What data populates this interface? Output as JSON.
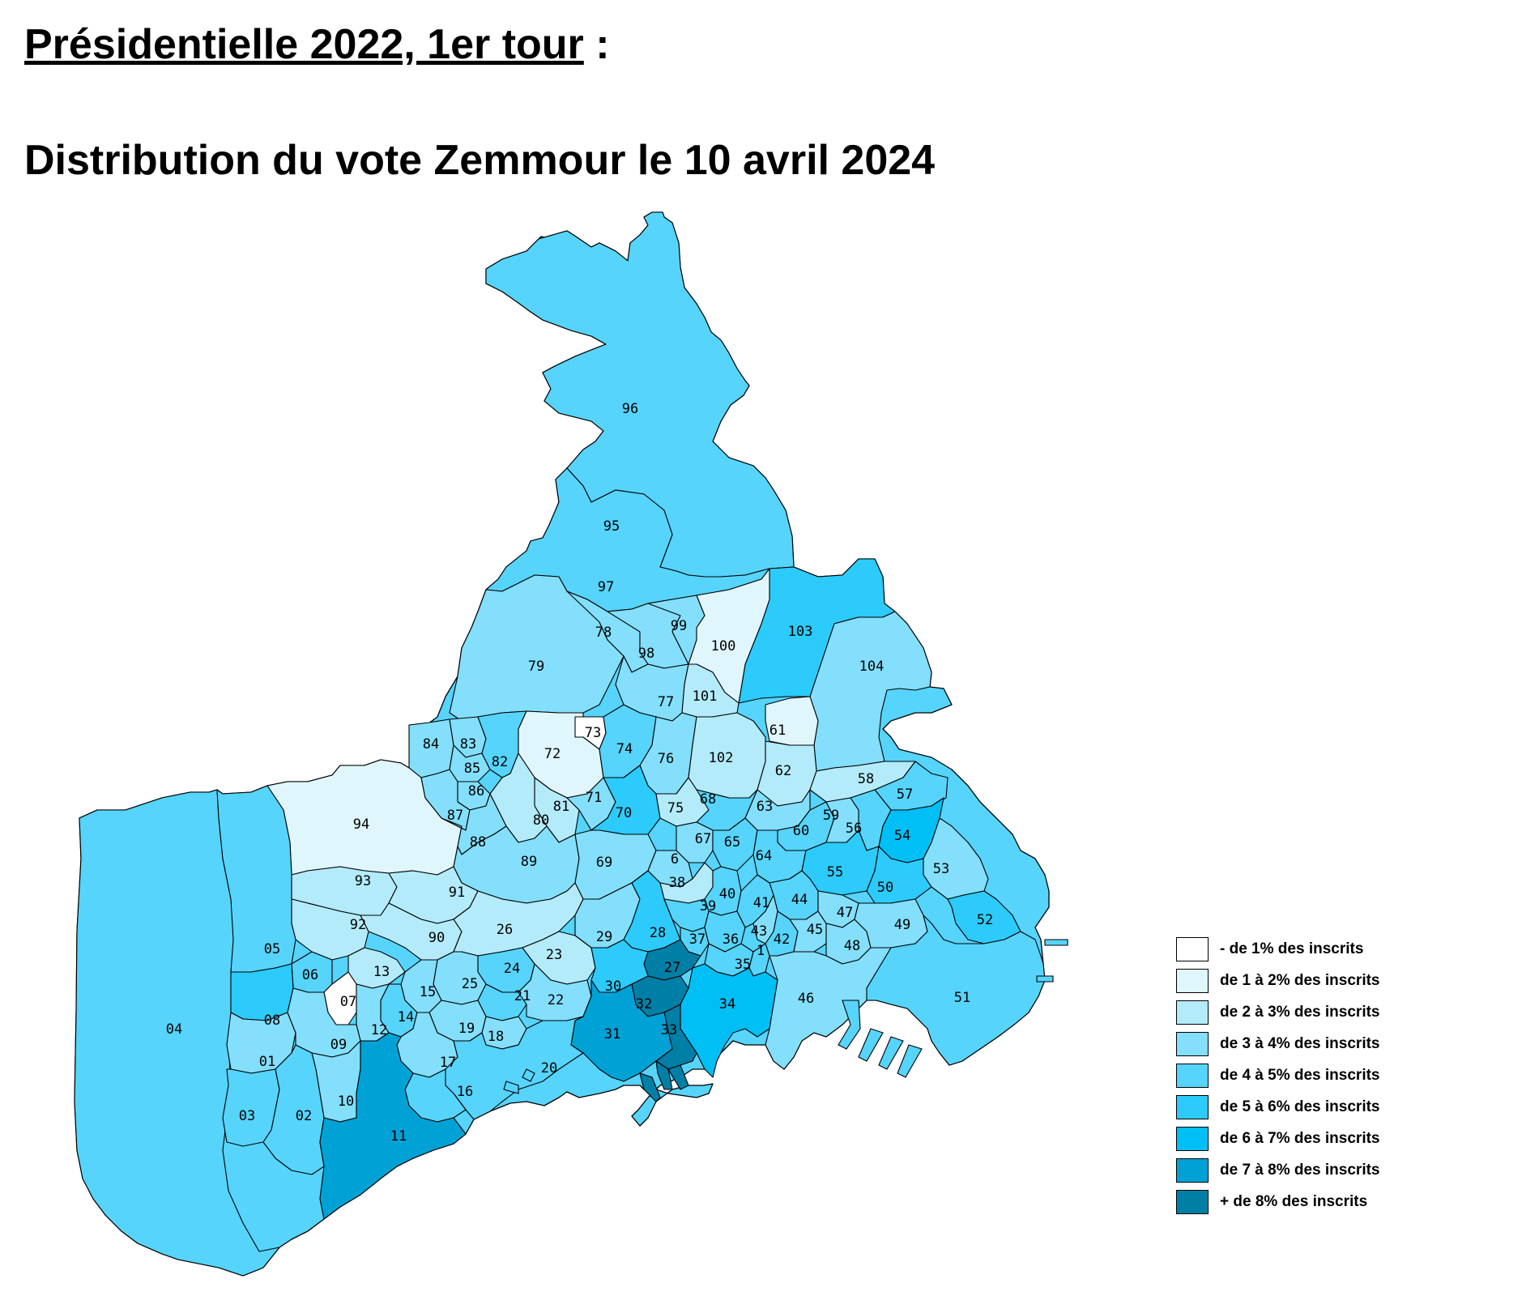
{
  "title": {
    "line1_underlined": "Présidentielle 2022, 1er tour",
    "line1_suffix": " :",
    "line2": "Distribution du vote Zemmour le 10 avril 2024"
  },
  "legend": [
    {
      "label": "- de 1% des inscrits",
      "color": "#ffffff"
    },
    {
      "label": "de 1 à 2% des inscrits",
      "color": "#e0f6fd"
    },
    {
      "label": "de 2 à 3% des inscrits",
      "color": "#b3ebfb"
    },
    {
      "label": "de 3 à 4% des inscrits",
      "color": "#83dffb"
    },
    {
      "label": "de 4 à 5% des inscrits",
      "color": "#56d4fb"
    },
    {
      "label": "de 5 à 6% des inscrits",
      "color": "#2ccbfb"
    },
    {
      "label": "de 6 à 7% des inscrits",
      "color": "#00bff5"
    },
    {
      "label": "de 7 à 8% des inscrits",
      "color": "#00a2d6"
    },
    {
      "label": "+ de 8% des inscrits",
      "color": "#007fa6"
    }
  ],
  "map": {
    "sectors": [
      {
        "label": "96",
        "class": 4
      },
      {
        "label": "95",
        "class": 3
      },
      {
        "label": "97",
        "class": 4
      },
      {
        "label": "103",
        "class": 5
      },
      {
        "label": "104",
        "class": 3
      },
      {
        "label": "79",
        "class": 3
      },
      {
        "label": "78",
        "class": 3
      },
      {
        "label": "98",
        "class": 3
      },
      {
        "label": "99",
        "class": 3
      },
      {
        "label": "100",
        "class": 1
      },
      {
        "label": "77",
        "class": 3
      },
      {
        "label": "101",
        "class": 2
      },
      {
        "label": "84",
        "class": 3
      },
      {
        "label": "83",
        "class": 3
      },
      {
        "label": "85",
        "class": 3
      },
      {
        "label": "82",
        "class": 4
      },
      {
        "label": "72",
        "class": 1
      },
      {
        "label": "73",
        "class": 0
      },
      {
        "label": "74",
        "class": 4
      },
      {
        "label": "76",
        "class": 3
      },
      {
        "label": "102",
        "class": 2
      },
      {
        "label": "61",
        "class": 1
      },
      {
        "label": "62",
        "class": 2
      },
      {
        "label": "58",
        "class": 2
      },
      {
        "label": "94",
        "class": 1
      },
      {
        "label": "86",
        "class": 3
      },
      {
        "label": "87",
        "class": 3
      },
      {
        "label": "81",
        "class": 2
      },
      {
        "label": "71",
        "class": 3
      },
      {
        "label": "70",
        "class": 5
      },
      {
        "label": "75",
        "class": 2
      },
      {
        "label": "68",
        "class": 4
      },
      {
        "label": "63",
        "class": 3
      },
      {
        "label": "57",
        "class": 4
      },
      {
        "label": "80",
        "class": 2
      },
      {
        "label": "88",
        "class": 3
      },
      {
        "label": "89",
        "class": 3
      },
      {
        "label": "69",
        "class": 3
      },
      {
        "label": "67",
        "class": 3
      },
      {
        "label": "65",
        "class": 4
      },
      {
        "label": "60",
        "class": 4
      },
      {
        "label": "59",
        "class": 3
      },
      {
        "label": "56",
        "class": 4
      },
      {
        "label": "54",
        "class": 6
      },
      {
        "label": "6",
        "class": 3
      },
      {
        "label": "64",
        "class": 4
      },
      {
        "label": "55",
        "class": 5
      },
      {
        "label": "53",
        "class": 3
      },
      {
        "label": "93",
        "class": 2
      },
      {
        "label": "91",
        "class": 2
      },
      {
        "label": "38",
        "class": 2
      },
      {
        "label": "40",
        "class": 4
      },
      {
        "label": "44",
        "class": 4
      },
      {
        "label": "50",
        "class": 5
      },
      {
        "label": "92",
        "class": 2
      },
      {
        "label": "90",
        "class": 2
      },
      {
        "label": "26",
        "class": 2
      },
      {
        "label": "29",
        "class": 3
      },
      {
        "label": "28",
        "class": 5
      },
      {
        "label": "39",
        "class": 4
      },
      {
        "label": "37",
        "class": 4
      },
      {
        "label": "36",
        "class": 4
      },
      {
        "label": "41",
        "class": 4
      },
      {
        "label": "43",
        "class": 3
      },
      {
        "label": "42",
        "class": 4
      },
      {
        "label": "45",
        "class": 3
      },
      {
        "label": "47",
        "class": 3
      },
      {
        "label": "48",
        "class": 3
      },
      {
        "label": "49",
        "class": 3
      },
      {
        "label": "52",
        "class": 5
      },
      {
        "label": "05",
        "class": 4
      },
      {
        "label": "06",
        "class": 4
      },
      {
        "label": "13",
        "class": 3
      },
      {
        "label": "24",
        "class": 4
      },
      {
        "label": "23",
        "class": 2
      },
      {
        "label": "25",
        "class": 3
      },
      {
        "label": "21",
        "class": 4
      },
      {
        "label": "22",
        "class": 3
      },
      {
        "label": "27",
        "class": 8
      },
      {
        "label": "35",
        "class": 4
      },
      {
        "label": "1",
        "class": 4
      },
      {
        "label": "07",
        "class": 0
      },
      {
        "label": "15",
        "class": 3
      },
      {
        "label": "14",
        "class": 4
      },
      {
        "label": "30",
        "class": 5
      },
      {
        "label": "32",
        "class": 8
      },
      {
        "label": "34",
        "class": 6
      },
      {
        "label": "46",
        "class": 3
      },
      {
        "label": "51",
        "class": 4
      },
      {
        "label": "04",
        "class": 4
      },
      {
        "label": "08",
        "class": 5
      },
      {
        "label": "12",
        "class": 3
      },
      {
        "label": "19",
        "class": 3
      },
      {
        "label": "18",
        "class": 3
      },
      {
        "label": "31",
        "class": 7
      },
      {
        "label": "33",
        "class": 8
      },
      {
        "label": "01",
        "class": 3
      },
      {
        "label": "09",
        "class": 3
      },
      {
        "label": "17",
        "class": 3
      },
      {
        "label": "20",
        "class": 4
      },
      {
        "label": "16",
        "class": 4
      },
      {
        "label": "10",
        "class": 3
      },
      {
        "label": "03",
        "class": 4
      },
      {
        "label": "02",
        "class": 4
      },
      {
        "label": "11",
        "class": 7
      }
    ]
  }
}
